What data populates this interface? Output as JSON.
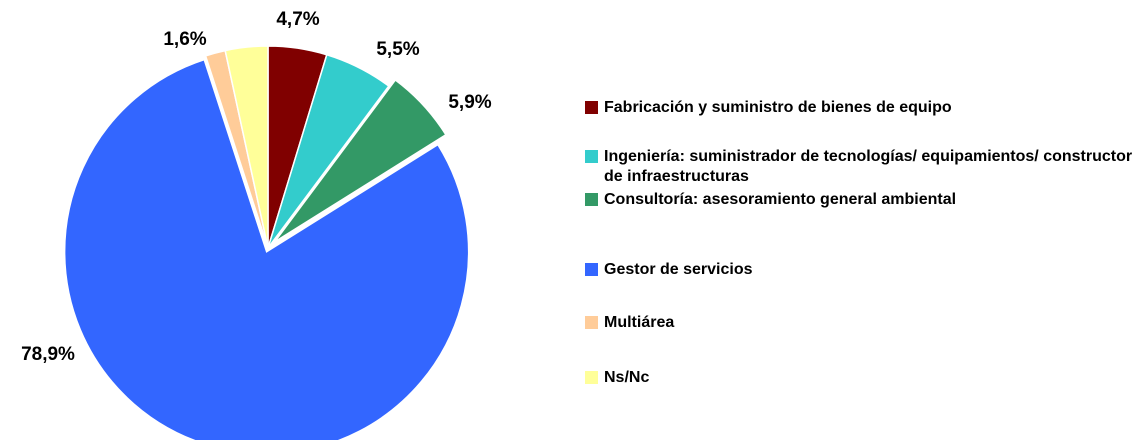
{
  "chart_data": {
    "type": "pie",
    "categories": [
      "Fabricación y suministro de bienes de equipo",
      "Ingeniería: suministrador de tecnologías/ equipamientos/ constructor de infraestructuras",
      "Consultoría: asesoramiento general ambiental",
      "Gestor de servicios",
      "Multiárea",
      "Ns/Nc"
    ],
    "values": [
      4.7,
      5.5,
      5.9,
      78.9,
      1.6,
      3.4
    ],
    "value_labels": [
      "4,7%",
      "5,5%",
      "5,9%",
      "78,9%",
      "1,6%",
      null
    ],
    "colors": [
      "#800000",
      "#33cccc",
      "#339966",
      "#3366ff",
      "#ffcc99",
      "#ffff99"
    ],
    "legend": "right"
  }
}
